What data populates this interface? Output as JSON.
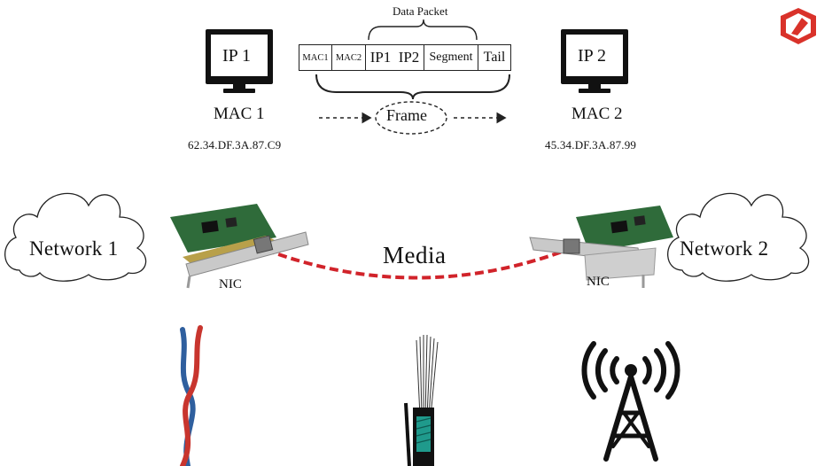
{
  "packet": {
    "title": "Data Packet",
    "fields": [
      "MAC1",
      "MAC2",
      "IP1",
      "IP2",
      "Segment",
      "Tail"
    ]
  },
  "frame_label": "Frame",
  "host1": {
    "ip": "IP 1",
    "mac": "MAC 1",
    "address": "62.34.DF.3A.87.C9"
  },
  "host2": {
    "ip": "IP 2",
    "mac": "MAC 2",
    "address": "45.34.DF.3A.87.99"
  },
  "network1": "Network 1",
  "network2": "Network 2",
  "media_label": "Media",
  "nic_label": "NIC",
  "colors": {
    "link": "#d1232a",
    "pcb": "#2f6b3a",
    "logo": "#d9322a"
  },
  "icons": [
    "monitor-icon",
    "cloud-icon",
    "nic-card-icon",
    "twisted-pair-cable-icon",
    "fiber-optic-cable-icon",
    "wireless-tower-icon",
    "logo-icon"
  ]
}
